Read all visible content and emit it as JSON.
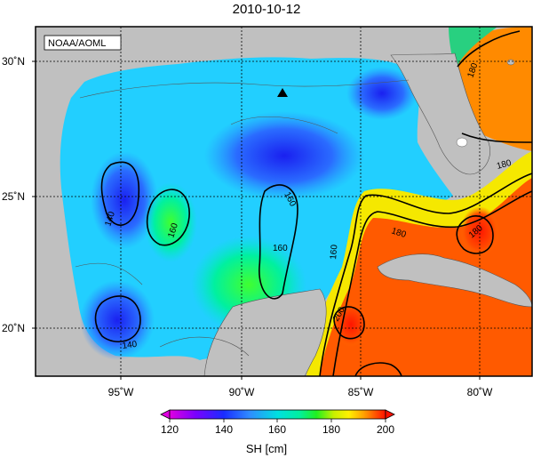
{
  "title": "2010-10-12",
  "credit": "NOAA/AOML",
  "lat_labels": [
    "30˚N",
    "25˚N",
    "20˚N"
  ],
  "lon_labels": [
    "95˚W",
    "90˚W",
    "85˚W",
    "80˚W"
  ],
  "contour_labels": [
    "180",
    "180",
    "160",
    "180",
    "160",
    "140",
    "160",
    "160",
    "200",
    "140",
    "180"
  ],
  "marker": "triangle",
  "colorbar": {
    "ticks": [
      "120",
      "140",
      "160",
      "180",
      "200"
    ],
    "label": "SH [cm]",
    "min": 120,
    "max": 200,
    "colors": [
      "#e000e0",
      "#7a00ff",
      "#1a2cff",
      "#2f8cff",
      "#00e0e0",
      "#00f0a0",
      "#20f020",
      "#c8f000",
      "#fff000",
      "#ffa000",
      "#ff4000",
      "#ff0000"
    ]
  },
  "land_color": "#c0c0c0"
}
